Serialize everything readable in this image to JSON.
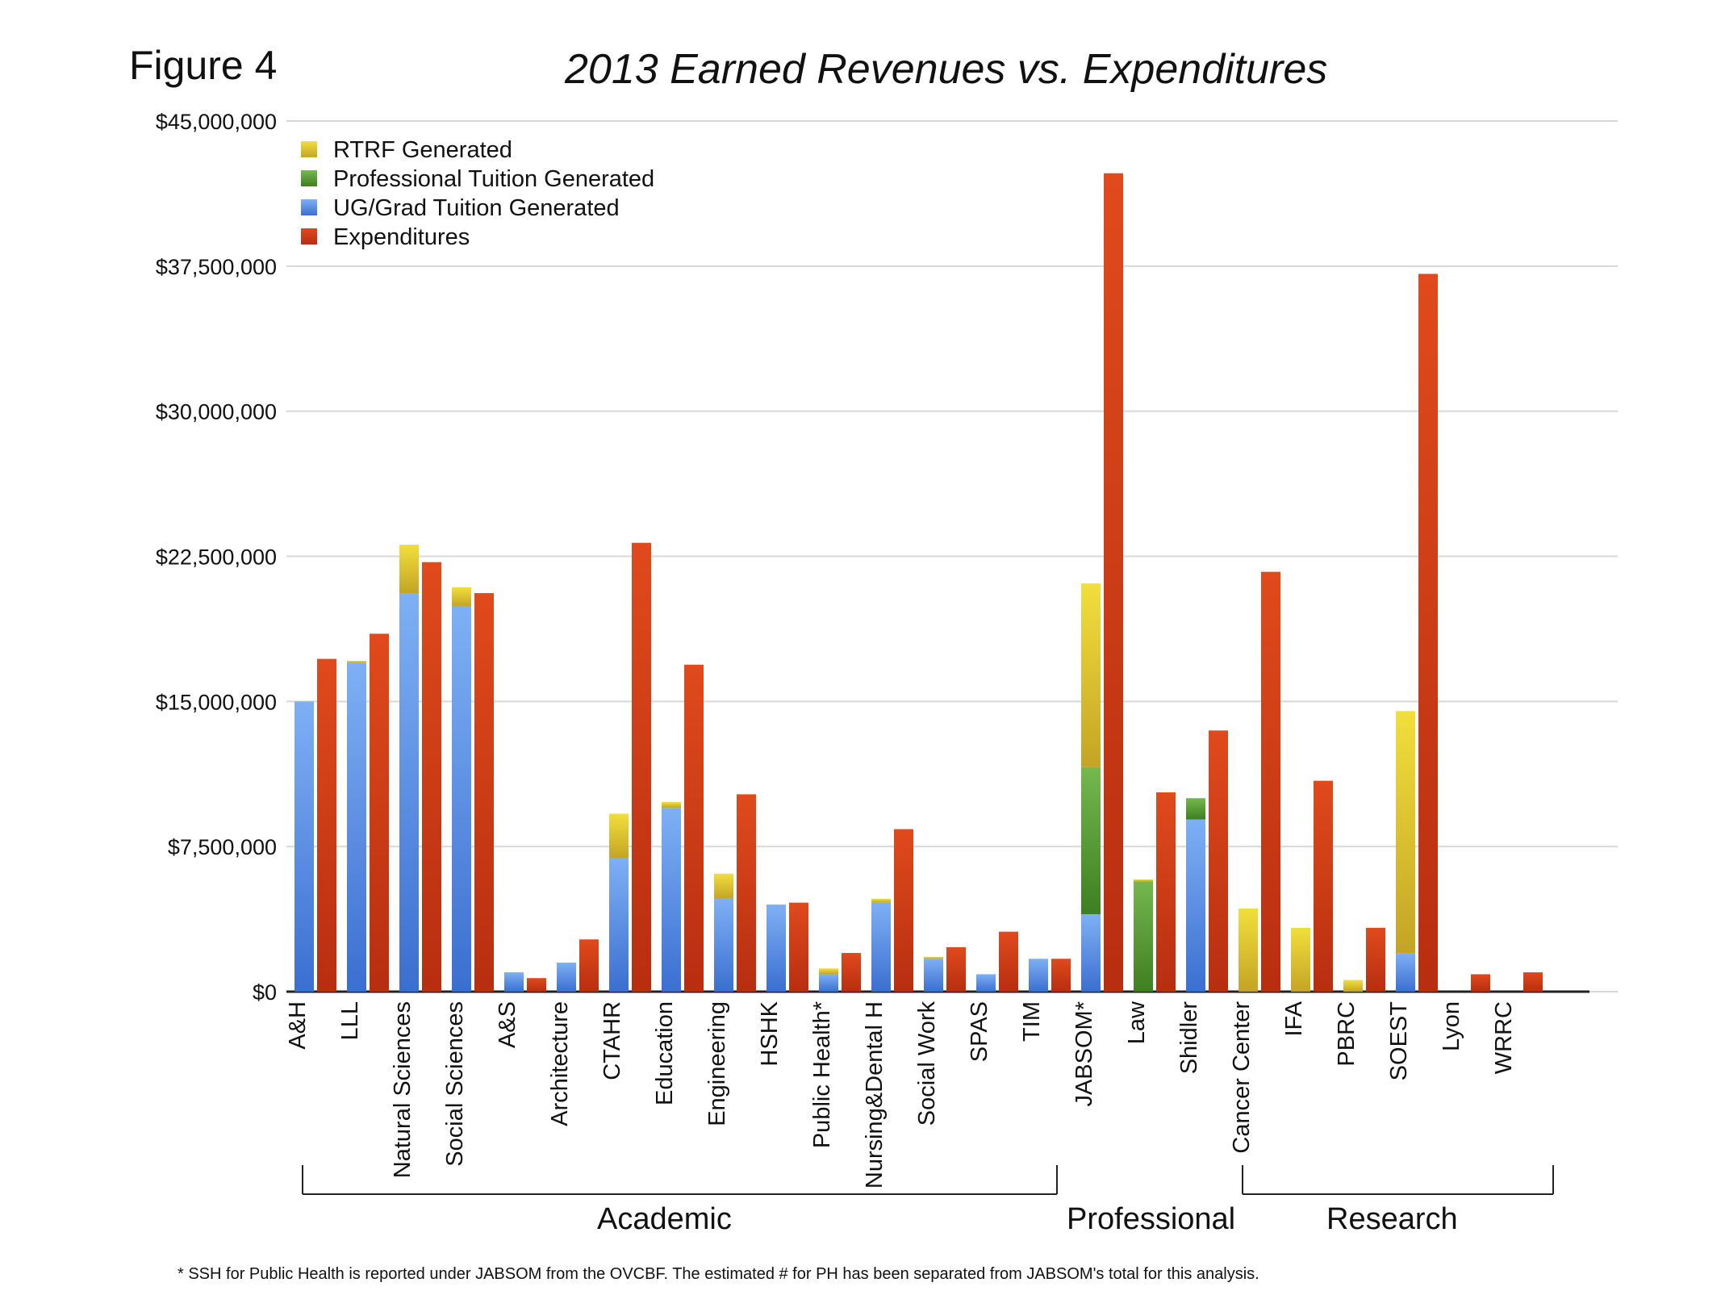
{
  "figure_label": "Figure 4",
  "chart_data": {
    "type": "bar",
    "title": "2013 Earned Revenues vs. Expenditures",
    "xlabel": "",
    "ylabel": "",
    "ylim": [
      0,
      45000000
    ],
    "y_ticks": [
      0,
      7500000,
      15000000,
      22500000,
      30000000,
      37500000,
      45000000
    ],
    "y_tick_labels": [
      "$0",
      "$7,500,000",
      "$15,000,000",
      "$22,500,000",
      "$30,000,000",
      "$37,500,000",
      "$45,000,000"
    ],
    "grid": true,
    "legend_position": "top-left",
    "categories": [
      "A&H",
      "LLL",
      "Natural Sciences",
      "Social Sciences",
      "A&S",
      "Architecture",
      "CTAHR",
      "Education",
      "Engineering",
      "HSHK",
      "Public Health*",
      "Nursing&Dental H",
      "Social Work",
      "SPAS",
      "TIM",
      "JABSOM*",
      "Law",
      "Shidler",
      "Cancer Center",
      "IFA",
      "PBRC",
      "SOEST",
      "Lyon",
      "WRRC"
    ],
    "revenue_stack": [
      {
        "name": "UG/Grad Tuition Generated",
        "color": "#4a86e0",
        "values": [
          15000000,
          17000000,
          20600000,
          19900000,
          1000000,
          1500000,
          6900000,
          9500000,
          4800000,
          4500000,
          900000,
          4600000,
          1700000,
          900000,
          1700000,
          4000000,
          0,
          8900000,
          0,
          0,
          0,
          2000000,
          0,
          0
        ]
      },
      {
        "name": "Professional Tuition Generated",
        "color": "#55a035",
        "values": [
          0,
          0,
          0,
          0,
          0,
          0,
          0,
          0,
          0,
          0,
          0,
          0,
          0,
          0,
          0,
          7600000,
          5700000,
          1100000,
          0,
          0,
          0,
          0,
          0,
          0
        ]
      },
      {
        "name": "RTRF Generated",
        "color": "#d9c22c",
        "values": [
          0,
          100000,
          2500000,
          1000000,
          0,
          0,
          2300000,
          300000,
          1300000,
          0,
          300000,
          200000,
          100000,
          0,
          0,
          9500000,
          100000,
          0,
          4300000,
          3300000,
          600000,
          12500000,
          0,
          0
        ]
      }
    ],
    "series": [
      {
        "name": "Expenditures",
        "color": "#d03c14",
        "values": [
          17200000,
          18500000,
          22200000,
          20600000,
          700000,
          2700000,
          23200000,
          16900000,
          10200000,
          4600000,
          2000000,
          8400000,
          2300000,
          3100000,
          1700000,
          42300000,
          10300000,
          13500000,
          21700000,
          10900000,
          3300000,
          37100000,
          900000,
          1000000
        ]
      }
    ],
    "legend": [
      "RTRF Generated",
      "Professional Tuition Generated",
      "UG/Grad Tuition Generated",
      "Expenditures"
    ],
    "groups": [
      {
        "name": "Academic",
        "first": 0,
        "last": 14
      },
      {
        "name": "Professional",
        "first": 15,
        "last": 17
      },
      {
        "name": "Research",
        "first": 18,
        "last": 23
      }
    ]
  },
  "footnote": "* SSH for Public Health is reported under JABSOM from the OVCBF.  The estimated # for PH has been separated from JABSOM's total for this analysis."
}
